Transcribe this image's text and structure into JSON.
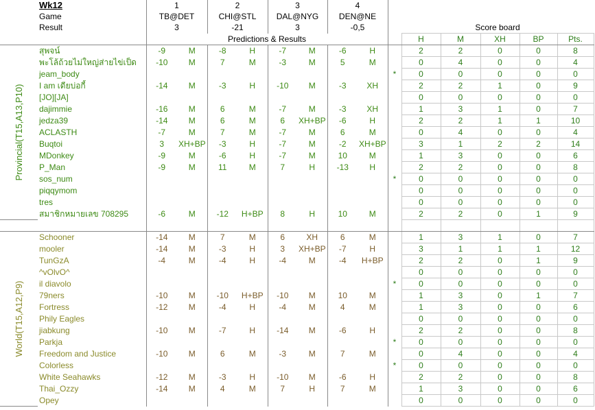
{
  "header": {
    "week": "Wk12",
    "game_numbers": [
      1,
      2,
      3,
      4
    ],
    "game_label": "Game",
    "games": [
      "TB@DET",
      "CHI@STL",
      "DAL@NYG",
      "DEN@NE"
    ],
    "result_label": "Result",
    "results": [
      3,
      -21,
      3,
      "-0,5"
    ],
    "predictions_label": "Predictions & Results",
    "scoreboard_label": "Score board",
    "score_columns": [
      "H",
      "M",
      "XH",
      "BP",
      "Pts."
    ]
  },
  "groups": [
    {
      "label": "Provincial(T15,A13,P10)",
      "rows": [
        {
          "name": "สุพจน์",
          "picks": [
            [
              -9,
              "M"
            ],
            [
              -8,
              "H"
            ],
            [
              -7,
              "M"
            ],
            [
              -6,
              "H"
            ]
          ],
          "score": [
            2,
            2,
            0,
            0,
            8
          ]
        },
        {
          "name": "พะโล้ถ้วยไม่ใหญ่ส่ายไข่เป็ด",
          "picks": [
            [
              -10,
              "M"
            ],
            [
              7,
              "M"
            ],
            [
              -3,
              "M"
            ],
            [
              5,
              "M"
            ]
          ],
          "score": [
            0,
            4,
            0,
            0,
            4
          ]
        },
        {
          "name": "jeam_body",
          "star": "*",
          "score": [
            0,
            0,
            0,
            0,
            0
          ]
        },
        {
          "name": "I am เดียบ่อกี้",
          "picks": [
            [
              -14,
              "M"
            ],
            [
              -3,
              "H"
            ],
            [
              -10,
              "M"
            ],
            [
              -3,
              "XH"
            ]
          ],
          "score": [
            2,
            2,
            1,
            0,
            9
          ]
        },
        {
          "name": "[JO][JA]",
          "score": [
            0,
            0,
            0,
            0,
            0
          ]
        },
        {
          "name": "dajimmie",
          "picks": [
            [
              -16,
              "M"
            ],
            [
              6,
              "M"
            ],
            [
              -7,
              "M"
            ],
            [
              -3,
              "XH"
            ]
          ],
          "score": [
            1,
            3,
            1,
            0,
            7
          ]
        },
        {
          "name": "jedza39",
          "picks": [
            [
              -14,
              "M"
            ],
            [
              6,
              "M"
            ],
            [
              6,
              "XH+BP"
            ],
            [
              -6,
              "H"
            ]
          ],
          "score": [
            2,
            2,
            1,
            1,
            10
          ]
        },
        {
          "name": "ACLASTH",
          "picks": [
            [
              -7,
              "M"
            ],
            [
              7,
              "M"
            ],
            [
              -7,
              "M"
            ],
            [
              6,
              "M"
            ]
          ],
          "score": [
            0,
            4,
            0,
            0,
            4
          ]
        },
        {
          "name": "Buqtoi",
          "picks": [
            [
              3,
              "XH+BP"
            ],
            [
              -3,
              "H"
            ],
            [
              -7,
              "M"
            ],
            [
              -2,
              "XH+BP"
            ]
          ],
          "score": [
            3,
            1,
            2,
            2,
            14
          ]
        },
        {
          "name": "MDonkey",
          "picks": [
            [
              -9,
              "M"
            ],
            [
              -6,
              "H"
            ],
            [
              -7,
              "M"
            ],
            [
              10,
              "M"
            ]
          ],
          "score": [
            1,
            3,
            0,
            0,
            6
          ]
        },
        {
          "name": "P_Man",
          "picks": [
            [
              -9,
              "M"
            ],
            [
              11,
              "M"
            ],
            [
              7,
              "H"
            ],
            [
              -13,
              "H"
            ]
          ],
          "score": [
            2,
            2,
            0,
            0,
            8
          ]
        },
        {
          "name": "sos_num",
          "star": "*",
          "score": [
            0,
            0,
            0,
            0,
            0
          ]
        },
        {
          "name": "piqqymom",
          "score": [
            0,
            0,
            0,
            0,
            0
          ]
        },
        {
          "name": "tres",
          "score": [
            0,
            0,
            0,
            0,
            0
          ]
        },
        {
          "name": "สมาชิกหมายเลข 708295",
          "picks": [
            [
              -6,
              "M"
            ],
            [
              -12,
              "H+BP"
            ],
            [
              8,
              "H"
            ],
            [
              10,
              "M"
            ]
          ],
          "score": [
            2,
            2,
            0,
            1,
            9
          ]
        }
      ]
    },
    {
      "label": "World(T15,A12,P9)",
      "rows": [
        {
          "name": "Schooner",
          "picks": [
            [
              -14,
              "M"
            ],
            [
              7,
              "M"
            ],
            [
              6,
              "XH"
            ],
            [
              6,
              "M"
            ]
          ],
          "score": [
            1,
            3,
            1,
            0,
            7
          ]
        },
        {
          "name": "mooler",
          "picks": [
            [
              -14,
              "M"
            ],
            [
              -3,
              "H"
            ],
            [
              3,
              "XH+BP"
            ],
            [
              -7,
              "H"
            ]
          ],
          "score": [
            3,
            1,
            1,
            1,
            12
          ]
        },
        {
          "name": "TunGzA",
          "picks": [
            [
              -4,
              "M"
            ],
            [
              -4,
              "H"
            ],
            [
              -4,
              "M"
            ],
            [
              -4,
              "H+BP"
            ]
          ],
          "score": [
            2,
            2,
            0,
            1,
            9
          ]
        },
        {
          "name": "^vOlvO^",
          "score": [
            0,
            0,
            0,
            0,
            0
          ]
        },
        {
          "name": "il diavolo",
          "star": "*",
          "score": [
            0,
            0,
            0,
            0,
            0
          ]
        },
        {
          "name": "79ners",
          "picks": [
            [
              -10,
              "M"
            ],
            [
              -10,
              "H+BP"
            ],
            [
              -10,
              "M"
            ],
            [
              10,
              "M"
            ]
          ],
          "score": [
            1,
            3,
            0,
            1,
            7
          ]
        },
        {
          "name": "Fortress",
          "picks": [
            [
              -12,
              "M"
            ],
            [
              -4,
              "H"
            ],
            [
              -4,
              "M"
            ],
            [
              4,
              "M"
            ]
          ],
          "score": [
            1,
            3,
            0,
            0,
            6
          ]
        },
        {
          "name": "Phily Eagles",
          "score": [
            0,
            0,
            0,
            0,
            0
          ]
        },
        {
          "name": "jiabkung",
          "picks": [
            [
              -10,
              "M"
            ],
            [
              -7,
              "H"
            ],
            [
              -14,
              "M"
            ],
            [
              -6,
              "H"
            ]
          ],
          "score": [
            2,
            2,
            0,
            0,
            8
          ]
        },
        {
          "name": "Parkja",
          "star": "*",
          "score": [
            0,
            0,
            0,
            0,
            0
          ]
        },
        {
          "name": "Freedom and Justice",
          "picks": [
            [
              -10,
              "M"
            ],
            [
              6,
              "M"
            ],
            [
              -3,
              "M"
            ],
            [
              7,
              "M"
            ]
          ],
          "score": [
            0,
            4,
            0,
            0,
            4
          ]
        },
        {
          "name": "Colorless",
          "star": "*",
          "score": [
            0,
            0,
            0,
            0,
            0
          ]
        },
        {
          "name": "White Seahawks",
          "picks": [
            [
              -12,
              "M"
            ],
            [
              -3,
              "H"
            ],
            [
              -10,
              "M"
            ],
            [
              -6,
              "H"
            ]
          ],
          "score": [
            2,
            2,
            0,
            0,
            8
          ]
        },
        {
          "name": "Thai_Ozzy",
          "picks": [
            [
              -14,
              "M"
            ],
            [
              4,
              "M"
            ],
            [
              7,
              "H"
            ],
            [
              7,
              "M"
            ]
          ],
          "score": [
            1,
            3,
            0,
            0,
            6
          ]
        },
        {
          "name": "Opey",
          "score": [
            0,
            0,
            0,
            0,
            0
          ]
        }
      ]
    }
  ]
}
